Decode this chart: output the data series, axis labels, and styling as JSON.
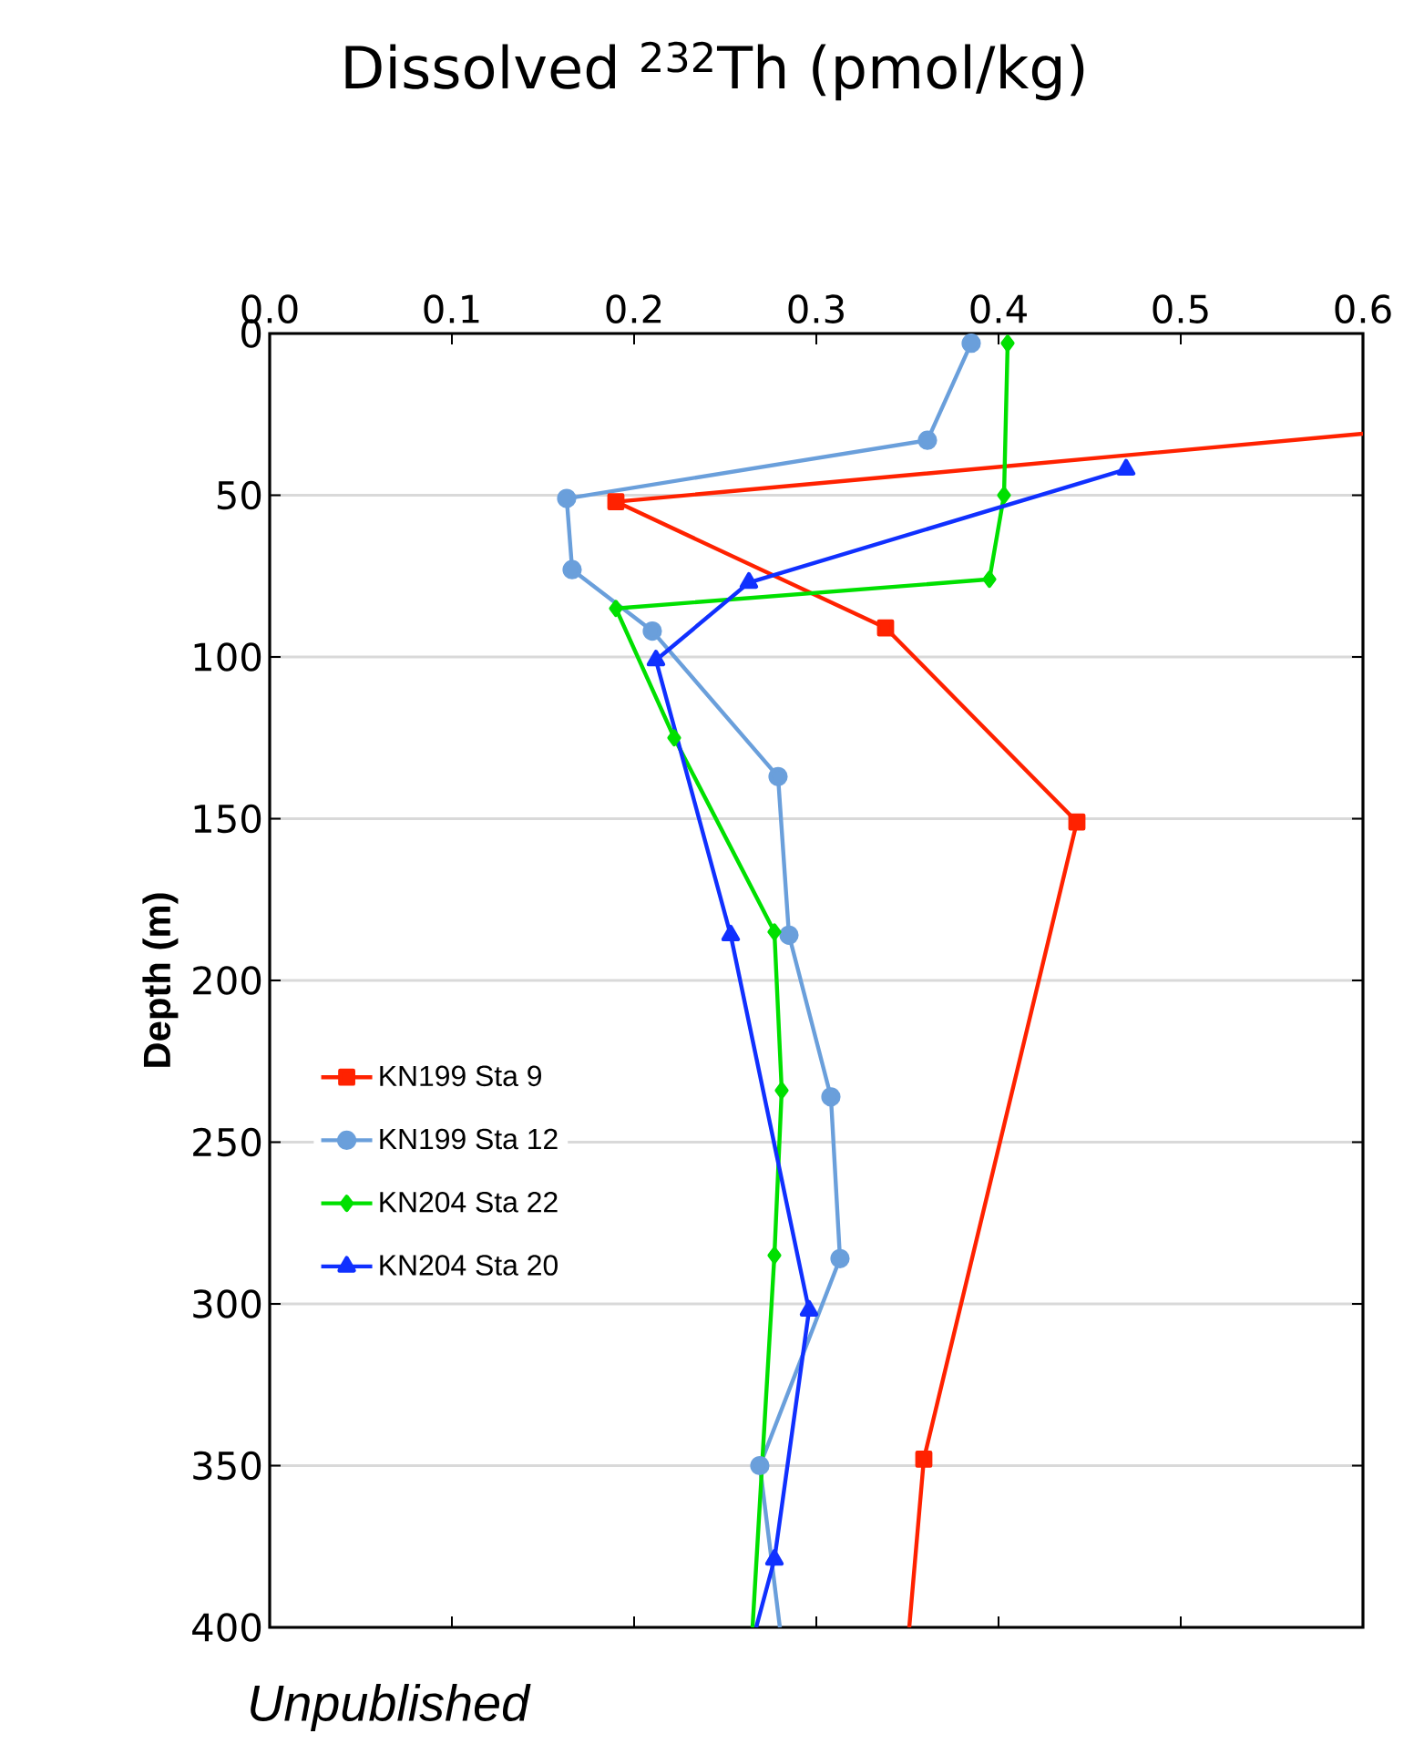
{
  "chart_data": {
    "type": "line",
    "title": "Dissolved $^{232}$Th (pmol/kg)",
    "ylabel": "Depth (m)",
    "annotations": [
      "Unpublished"
    ],
    "xlim": [
      0,
      0.6
    ],
    "xticks": [
      {
        "value": 0,
        "label": "0.0"
      },
      0.1,
      0.2,
      0.3,
      0.4,
      0.5,
      0.6
    ],
    "ylim": [
      400,
      0
    ],
    "yticks": [
      0,
      50,
      100,
      150,
      200,
      250,
      300,
      350,
      400
    ],
    "grid": "y",
    "legend": "left",
    "series": [
      {
        "name": "KN199 Sta 9",
        "color": "#ff2200",
        "marker": "square",
        "x": [
          0.6,
          0.19,
          0.338,
          0.443,
          0.359,
          0.351
        ],
        "values": [
          31,
          52,
          91,
          151,
          348,
          400
        ]
      },
      {
        "name": "KN199 Sta 12",
        "color": "#6a9fdb",
        "marker": "circle",
        "x": [
          0.385,
          0.361,
          0.163,
          0.166,
          0.21,
          0.279,
          0.285,
          0.308,
          0.313,
          0.269,
          0.28
        ],
        "values": [
          3,
          33,
          51,
          73,
          92,
          137,
          186,
          236,
          286,
          350,
          400
        ]
      },
      {
        "name": "KN204 Sta 22",
        "color": "#00e000",
        "marker": "diamond",
        "x": [
          0.405,
          0.403,
          0.395,
          0.19,
          0.222,
          0.277,
          0.281,
          0.277,
          0.265
        ],
        "values": [
          3,
          50,
          76,
          85,
          125,
          185,
          234,
          285,
          400
        ]
      },
      {
        "name": "KN204 Sta 20",
        "color": "#1030ff",
        "marker": "triangle",
        "x": [
          0.47,
          0.263,
          0.212,
          0.253,
          0.296,
          0.277,
          0.267
        ],
        "values": [
          42,
          77,
          101,
          186,
          302,
          379,
          400
        ]
      }
    ]
  }
}
